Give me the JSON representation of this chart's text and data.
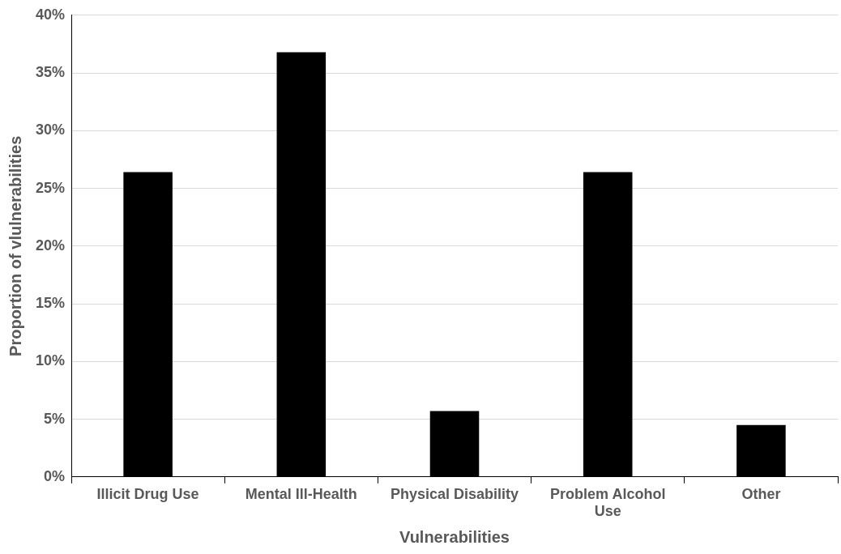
{
  "chart_data": {
    "type": "bar",
    "xlabel": "Vulnerabilities",
    "ylabel": "Proportion of vlulnerabilities",
    "categories": [
      "Illicit Drug Use",
      "Mental Ill-Health",
      "Physical Disability",
      "Problem Alcohol Use",
      "Other"
    ],
    "values": [
      26.4,
      36.8,
      5.7,
      26.4,
      4.5
    ],
    "color": "#000000",
    "ylim": [
      0,
      40
    ],
    "yticks": [
      {
        "value": 0,
        "label": "0%"
      },
      {
        "value": 5,
        "label": "5%"
      },
      {
        "value": 10,
        "label": "10%"
      },
      {
        "value": 15,
        "label": "15%"
      },
      {
        "value": 20,
        "label": "20%"
      },
      {
        "value": 25,
        "label": "25%"
      },
      {
        "value": 30,
        "label": "30%"
      },
      {
        "value": 35,
        "label": "35%"
      },
      {
        "value": 40,
        "label": "40%"
      }
    ],
    "grid": "y",
    "legend": false
  }
}
